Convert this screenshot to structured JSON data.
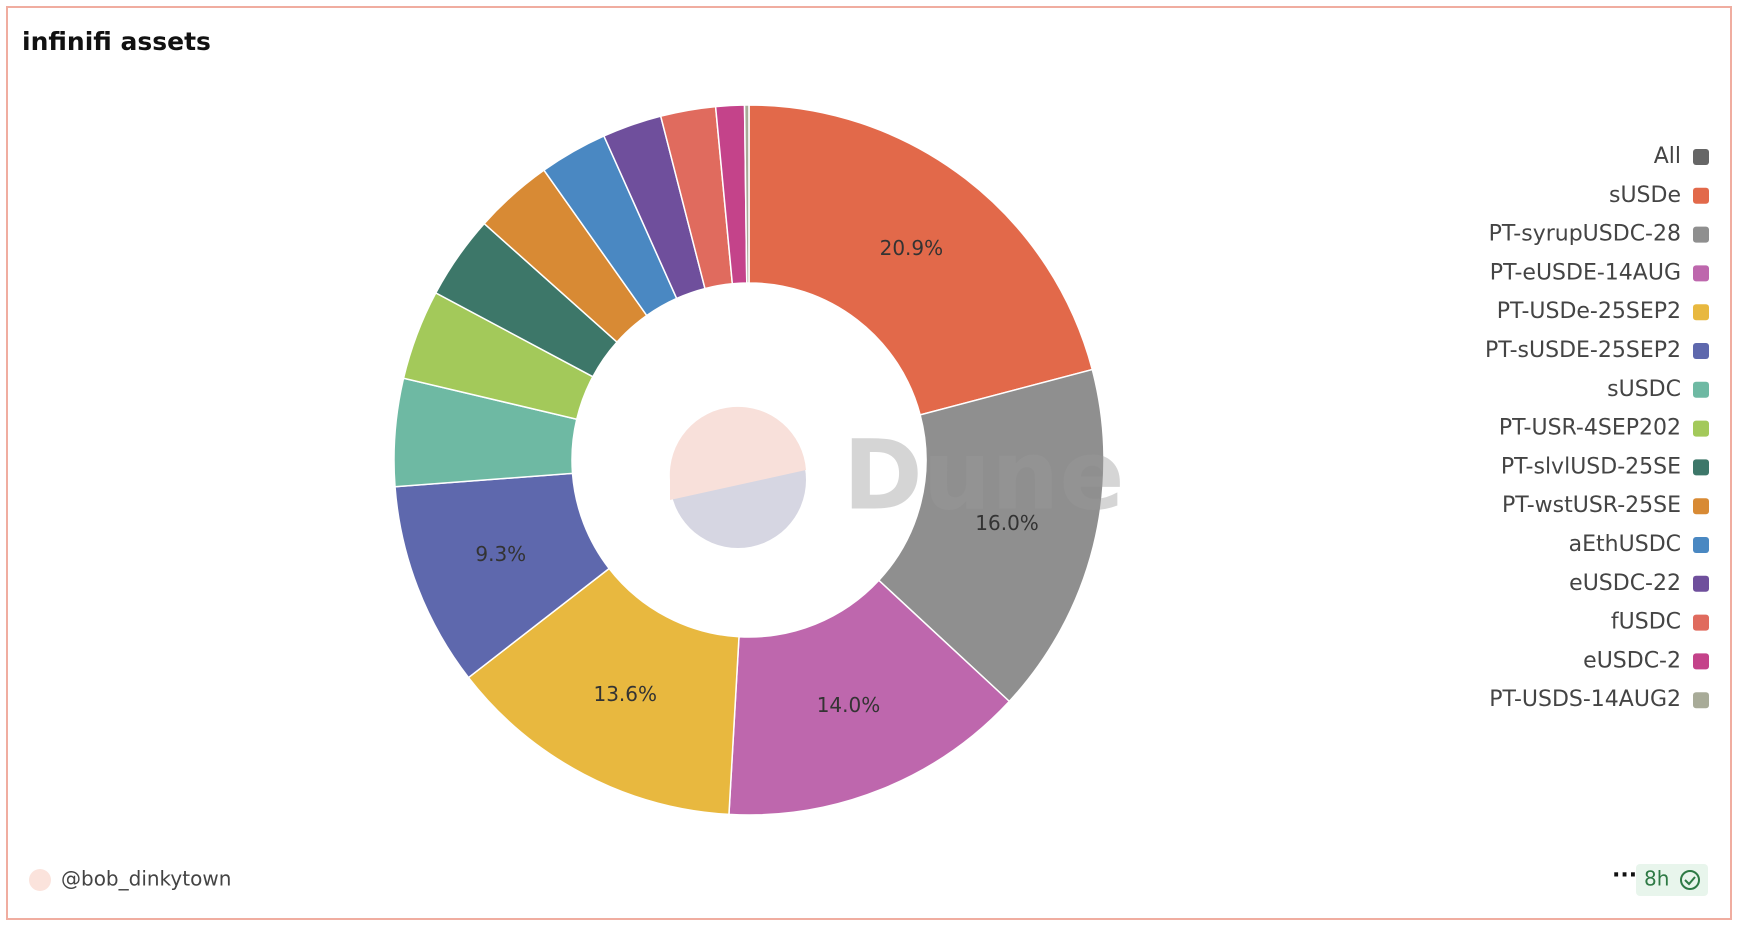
{
  "chart_data": {
    "type": "pie",
    "title": "infinifi assets",
    "watermark": "Dune",
    "legend_all": {
      "name": "All",
      "color": "#666666"
    },
    "categories": [
      "sUSDe",
      "PT-syrupUSDC-28",
      "PT-eUSDE-14AUG",
      "PT-USDe-25SEP2",
      "PT-sUSDE-25SEP2",
      "sUSDC",
      "PT-USR-4SEP202",
      "PT-slvlUSD-25SE",
      "PT-wstUSR-25SE",
      "aEthUSDC",
      "eUSDC-22",
      "fUSDC",
      "eUSDC-2",
      "PT-USDS-14AUG2"
    ],
    "values": [
      20.9,
      16.0,
      14.0,
      13.6,
      9.3,
      4.9,
      4.1,
      3.8,
      3.6,
      3.1,
      2.7,
      2.5,
      1.3,
      0.2
    ],
    "value_labels": [
      "20.9%",
      "16.0%",
      "14.0%",
      "13.6%",
      "9.3%",
      null,
      null,
      null,
      null,
      null,
      null,
      null,
      null,
      null
    ],
    "colors": [
      "#e2694a",
      "#8f8f8f",
      "#be67ad",
      "#e8b83f",
      "#5e68ad",
      "#6eb9a3",
      "#a3c95a",
      "#3d7769",
      "#d88a34",
      "#4a88c2",
      "#6f4f9c",
      "#e06b5e",
      "#c4438a",
      "#a8ab98"
    ]
  },
  "footer": {
    "author": "@bob_dinkytown",
    "age": "8h"
  }
}
